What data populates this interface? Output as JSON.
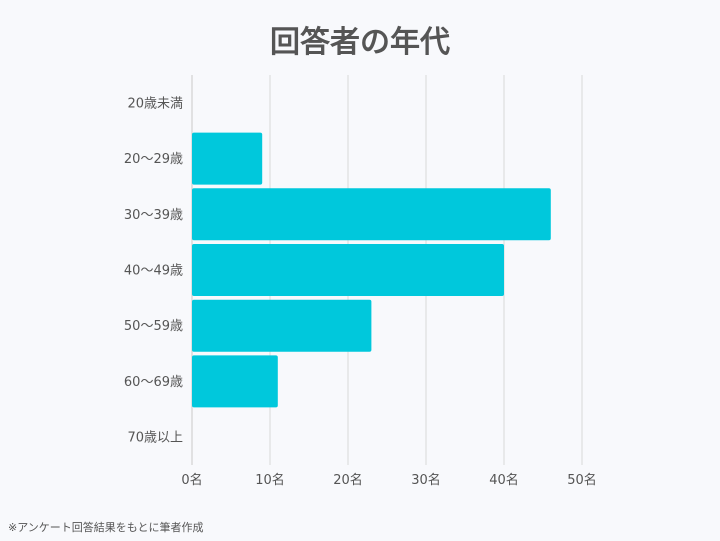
{
  "chart_data": {
    "type": "bar",
    "orientation": "horizontal",
    "title": "回答者の年代",
    "categories": [
      "20歳未満",
      "20〜29歳",
      "30〜39歳",
      "40〜49歳",
      "50〜59歳",
      "60〜69歳",
      "70歳以上"
    ],
    "values": [
      0,
      9,
      46,
      40,
      23,
      11,
      0
    ],
    "xlim": [
      0,
      50
    ],
    "x_ticks": [
      0,
      10,
      20,
      30,
      40,
      50
    ],
    "x_tick_labels": [
      "0名",
      "10名",
      "20名",
      "30名",
      "40名",
      "50名"
    ],
    "xlabel": "",
    "ylabel": "",
    "grid": true,
    "bar_color": "#00c8dc",
    "grid_color": "#d9d9d9"
  },
  "footnote": "※アンケート回答結果をもとに筆者作成"
}
